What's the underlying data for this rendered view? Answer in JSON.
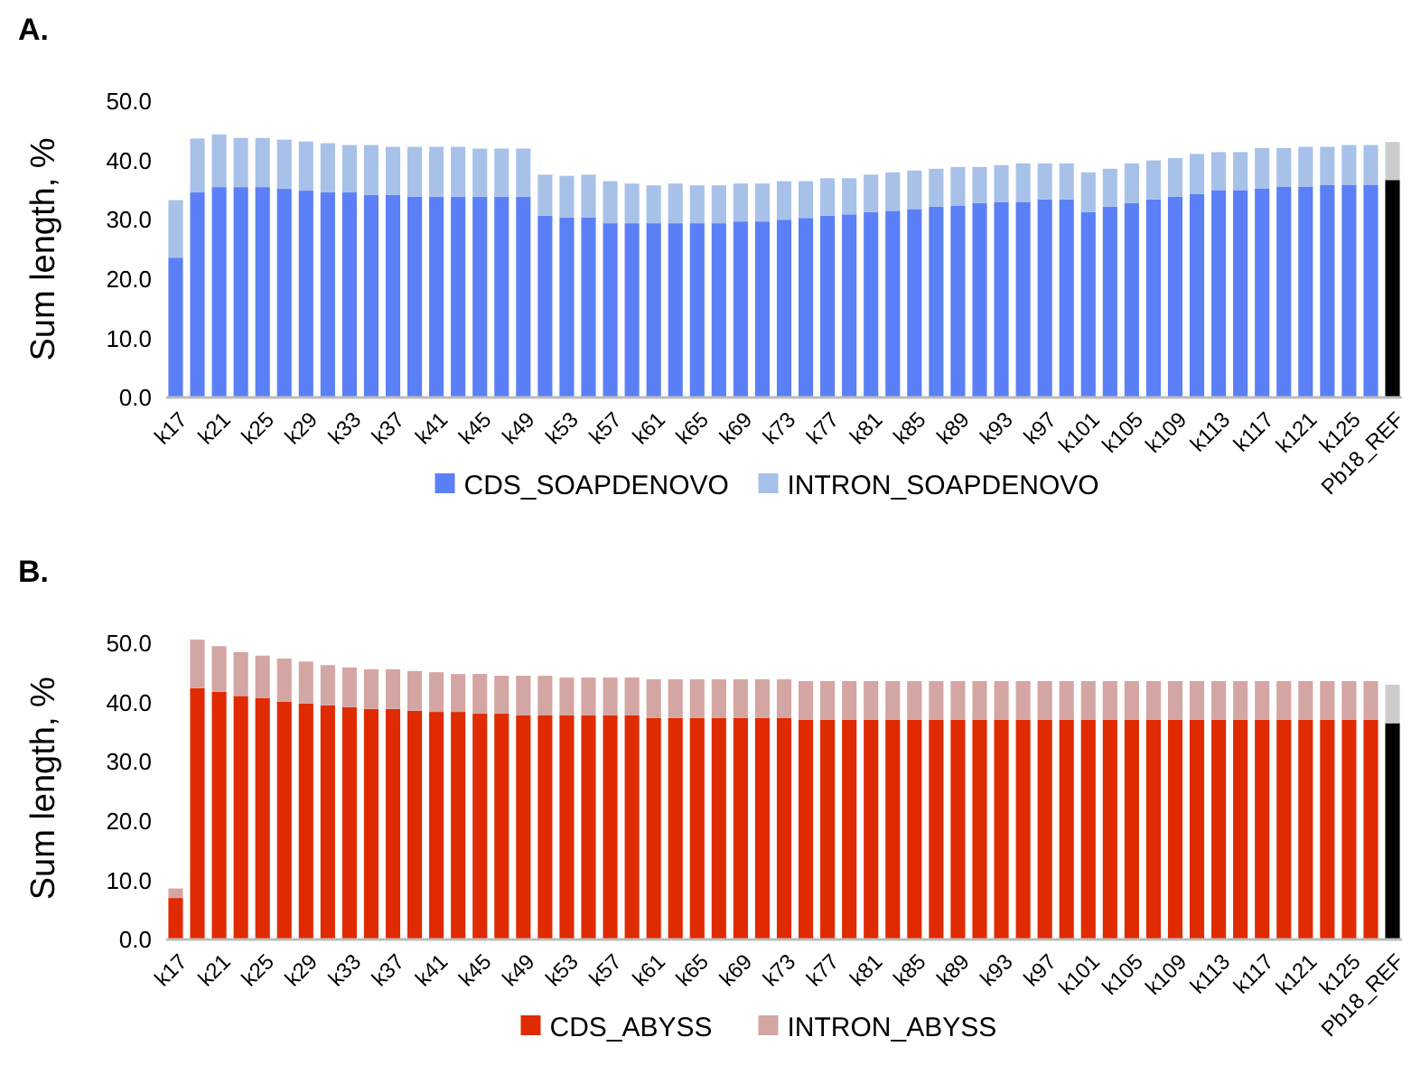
{
  "chart_data": [
    {
      "type": "bar",
      "title": "A.",
      "ylabel": "Sum length, %",
      "stacked": true,
      "legend": "bottom",
      "ylim": [
        0,
        50
      ],
      "yticks": [
        {
          "value": 0,
          "label": "0.0"
        },
        {
          "value": 10,
          "label": "10.0"
        },
        {
          "value": 20,
          "label": "20.0"
        },
        {
          "value": 30,
          "label": "30.0"
        },
        {
          "value": 40,
          "label": "40.0"
        },
        {
          "value": 50,
          "label": "50.0"
        }
      ],
      "categories": [
        "k17",
        null,
        "k21",
        null,
        "k25",
        null,
        "k29",
        null,
        "k33",
        null,
        "k37",
        null,
        "k41",
        null,
        "k45",
        null,
        "k49",
        null,
        "k53",
        null,
        "k57",
        null,
        "k61",
        null,
        "k65",
        null,
        "k69",
        null,
        "k73",
        null,
        "k77",
        null,
        "k81",
        null,
        "k85",
        null,
        "k89",
        null,
        "k93",
        null,
        "k97",
        null,
        "k101",
        null,
        "k105",
        null,
        "k109",
        null,
        "k113",
        null,
        "k117",
        null,
        "k121",
        null,
        "k125",
        null,
        "Pb18_REF"
      ],
      "series": [
        {
          "name": "CDS_SOAPDENOVO",
          "color": "#5b7ff7",
          "colors": [
            "#5b7ff7",
            "#5b7ff7",
            "#5b7ff7",
            "#5b7ff7",
            "#5b7ff7",
            "#5b7ff7",
            "#5b7ff7",
            "#5b7ff7",
            "#5b7ff7",
            "#5b7ff7",
            "#5b7ff7",
            "#5b7ff7",
            "#5b7ff7",
            "#5b7ff7",
            "#5b7ff7",
            "#5b7ff7",
            "#5b7ff7",
            "#5b7ff7",
            "#5b7ff7",
            "#5b7ff7",
            "#5b7ff7",
            "#5b7ff7",
            "#5b7ff7",
            "#5b7ff7",
            "#5b7ff7",
            "#5b7ff7",
            "#5b7ff7",
            "#5b7ff7",
            "#5b7ff7",
            "#5b7ff7",
            "#5b7ff7",
            "#5b7ff7",
            "#5b7ff7",
            "#5b7ff7",
            "#5b7ff7",
            "#5b7ff7",
            "#5b7ff7",
            "#5b7ff7",
            "#5b7ff7",
            "#5b7ff7",
            "#5b7ff7",
            "#5b7ff7",
            "#5b7ff7",
            "#5b7ff7",
            "#5b7ff7",
            "#5b7ff7",
            "#5b7ff7",
            "#5b7ff7",
            "#5b7ff7",
            "#5b7ff7",
            "#5b7ff7",
            "#5b7ff7",
            "#5b7ff7",
            "#5b7ff7",
            "#5b7ff7",
            "#5b7ff7",
            "#000000"
          ],
          "values": [
            23.6,
            34.6,
            35.5,
            35.5,
            35.5,
            35.2,
            34.9,
            34.6,
            34.6,
            34.2,
            34.2,
            33.9,
            33.9,
            33.9,
            33.9,
            33.9,
            33.9,
            30.7,
            30.4,
            30.4,
            29.4,
            29.4,
            29.4,
            29.4,
            29.4,
            29.4,
            29.7,
            29.7,
            30.0,
            30.3,
            30.7,
            30.9,
            31.3,
            31.5,
            31.8,
            32.2,
            32.4,
            32.8,
            33.0,
            33.0,
            33.4,
            33.4,
            31.3,
            32.2,
            32.8,
            33.4,
            33.9,
            34.3,
            35.0,
            35.0,
            35.3,
            35.6,
            35.6,
            35.9,
            35.9,
            35.9,
            36.7
          ]
        },
        {
          "name": "INTRON_SOAPDENOVO",
          "color": "#a8c1e8",
          "colors": [
            "#a8c1e8",
            "#a8c1e8",
            "#a8c1e8",
            "#a8c1e8",
            "#a8c1e8",
            "#a8c1e8",
            "#a8c1e8",
            "#a8c1e8",
            "#a8c1e8",
            "#a8c1e8",
            "#a8c1e8",
            "#a8c1e8",
            "#a8c1e8",
            "#a8c1e8",
            "#a8c1e8",
            "#a8c1e8",
            "#a8c1e8",
            "#a8c1e8",
            "#a8c1e8",
            "#a8c1e8",
            "#a8c1e8",
            "#a8c1e8",
            "#a8c1e8",
            "#a8c1e8",
            "#a8c1e8",
            "#a8c1e8",
            "#a8c1e8",
            "#a8c1e8",
            "#a8c1e8",
            "#a8c1e8",
            "#a8c1e8",
            "#a8c1e8",
            "#a8c1e8",
            "#a8c1e8",
            "#a8c1e8",
            "#a8c1e8",
            "#a8c1e8",
            "#a8c1e8",
            "#a8c1e8",
            "#a8c1e8",
            "#a8c1e8",
            "#a8c1e8",
            "#a8c1e8",
            "#a8c1e8",
            "#a8c1e8",
            "#a8c1e8",
            "#a8c1e8",
            "#a8c1e8",
            "#a8c1e8",
            "#a8c1e8",
            "#a8c1e8",
            "#a8c1e8",
            "#a8c1e8",
            "#a8c1e8",
            "#a8c1e8",
            "#a8c1e8",
            "#cccccc"
          ],
          "values": [
            9.7,
            9.1,
            8.9,
            8.3,
            8.3,
            8.3,
            8.3,
            8.3,
            8.0,
            8.4,
            8.1,
            8.4,
            8.4,
            8.4,
            8.1,
            8.1,
            8.1,
            6.9,
            7.0,
            7.2,
            7.1,
            6.7,
            6.4,
            6.7,
            6.4,
            6.4,
            6.4,
            6.4,
            6.5,
            6.2,
            6.3,
            6.1,
            6.3,
            6.5,
            6.5,
            6.4,
            6.5,
            6.1,
            6.2,
            6.5,
            6.1,
            6.1,
            6.7,
            6.4,
            6.7,
            6.6,
            6.5,
            6.8,
            6.4,
            6.4,
            6.8,
            6.5,
            6.7,
            6.4,
            6.7,
            6.7,
            6.4
          ]
        }
      ]
    },
    {
      "type": "bar",
      "title": "B.",
      "ylabel": "Sum length, %",
      "stacked": true,
      "legend": "bottom",
      "ylim": [
        0,
        51
      ],
      "yticks": [
        {
          "value": 0,
          "label": "0.0"
        },
        {
          "value": 10,
          "label": "10.0"
        },
        {
          "value": 20,
          "label": "20.0"
        },
        {
          "value": 30,
          "label": "30.0"
        },
        {
          "value": 40,
          "label": "40.0"
        },
        {
          "value": 50,
          "label": "50.0"
        }
      ],
      "categories": [
        "k17",
        null,
        "k21",
        null,
        "k25",
        null,
        "k29",
        null,
        "k33",
        null,
        "k37",
        null,
        "k41",
        null,
        "k45",
        null,
        "k49",
        null,
        "k53",
        null,
        "k57",
        null,
        "k61",
        null,
        "k65",
        null,
        "k69",
        null,
        "k73",
        null,
        "k77",
        null,
        "k81",
        null,
        "k85",
        null,
        "k89",
        null,
        "k93",
        null,
        "k97",
        null,
        "k101",
        null,
        "k105",
        null,
        "k109",
        null,
        "k113",
        null,
        "k117",
        null,
        "k121",
        null,
        "k125",
        null,
        "Pb18_REF"
      ],
      "series": [
        {
          "name": "CDS_ABYSS",
          "color": "#e02a00",
          "colors": [
            "#e02a00",
            "#e02a00",
            "#e02a00",
            "#e02a00",
            "#e02a00",
            "#e02a00",
            "#e02a00",
            "#e02a00",
            "#e02a00",
            "#e02a00",
            "#e02a00",
            "#e02a00",
            "#e02a00",
            "#e02a00",
            "#e02a00",
            "#e02a00",
            "#e02a00",
            "#e02a00",
            "#e02a00",
            "#e02a00",
            "#e02a00",
            "#e02a00",
            "#e02a00",
            "#e02a00",
            "#e02a00",
            "#e02a00",
            "#e02a00",
            "#e02a00",
            "#e02a00",
            "#e02a00",
            "#e02a00",
            "#e02a00",
            "#e02a00",
            "#e02a00",
            "#e02a00",
            "#e02a00",
            "#e02a00",
            "#e02a00",
            "#e02a00",
            "#e02a00",
            "#e02a00",
            "#e02a00",
            "#e02a00",
            "#e02a00",
            "#e02a00",
            "#e02a00",
            "#e02a00",
            "#e02a00",
            "#e02a00",
            "#e02a00",
            "#e02a00",
            "#e02a00",
            "#e02a00",
            "#e02a00",
            "#e02a00",
            "#e02a00",
            "#000000"
          ],
          "values": [
            7.0,
            42.4,
            41.8,
            41.1,
            40.7,
            40.1,
            39.8,
            39.5,
            39.2,
            38.9,
            38.9,
            38.6,
            38.4,
            38.4,
            38.1,
            38.1,
            37.8,
            37.8,
            37.8,
            37.8,
            37.8,
            37.8,
            37.4,
            37.4,
            37.4,
            37.4,
            37.4,
            37.4,
            37.4,
            37.1,
            37.1,
            37.1,
            37.1,
            37.1,
            37.1,
            37.1,
            37.1,
            37.1,
            37.1,
            37.1,
            37.1,
            37.1,
            37.1,
            37.1,
            37.1,
            37.1,
            37.1,
            37.1,
            37.1,
            37.1,
            37.1,
            37.1,
            37.1,
            37.1,
            37.1,
            37.1,
            36.5
          ]
        },
        {
          "name": "INTRON_ABYSS",
          "color": "#d4a6a3",
          "colors": [
            "#d4a6a3",
            "#d4a6a3",
            "#d4a6a3",
            "#d4a6a3",
            "#d4a6a3",
            "#d4a6a3",
            "#d4a6a3",
            "#d4a6a3",
            "#d4a6a3",
            "#d4a6a3",
            "#d4a6a3",
            "#d4a6a3",
            "#d4a6a3",
            "#d4a6a3",
            "#d4a6a3",
            "#d4a6a3",
            "#d4a6a3",
            "#d4a6a3",
            "#d4a6a3",
            "#d4a6a3",
            "#d4a6a3",
            "#d4a6a3",
            "#d4a6a3",
            "#d4a6a3",
            "#d4a6a3",
            "#d4a6a3",
            "#d4a6a3",
            "#d4a6a3",
            "#d4a6a3",
            "#d4a6a3",
            "#d4a6a3",
            "#d4a6a3",
            "#d4a6a3",
            "#d4a6a3",
            "#d4a6a3",
            "#d4a6a3",
            "#d4a6a3",
            "#d4a6a3",
            "#d4a6a3",
            "#d4a6a3",
            "#d4a6a3",
            "#d4a6a3",
            "#d4a6a3",
            "#d4a6a3",
            "#d4a6a3",
            "#d4a6a3",
            "#d4a6a3",
            "#d4a6a3",
            "#d4a6a3",
            "#d4a6a3",
            "#d4a6a3",
            "#d4a6a3",
            "#d4a6a3",
            "#d4a6a3",
            "#d4a6a3",
            "#d4a6a3",
            "#cccccc"
          ],
          "values": [
            1.6,
            8.2,
            7.7,
            7.4,
            7.2,
            7.3,
            7.1,
            6.8,
            6.7,
            6.7,
            6.7,
            6.7,
            6.7,
            6.4,
            6.7,
            6.4,
            6.7,
            6.7,
            6.4,
            6.4,
            6.4,
            6.4,
            6.5,
            6.5,
            6.5,
            6.5,
            6.5,
            6.5,
            6.5,
            6.5,
            6.5,
            6.5,
            6.5,
            6.5,
            6.5,
            6.5,
            6.5,
            6.5,
            6.5,
            6.5,
            6.5,
            6.5,
            6.5,
            6.5,
            6.5,
            6.5,
            6.5,
            6.5,
            6.5,
            6.5,
            6.5,
            6.5,
            6.5,
            6.5,
            6.5,
            6.5,
            6.5
          ]
        }
      ]
    }
  ]
}
